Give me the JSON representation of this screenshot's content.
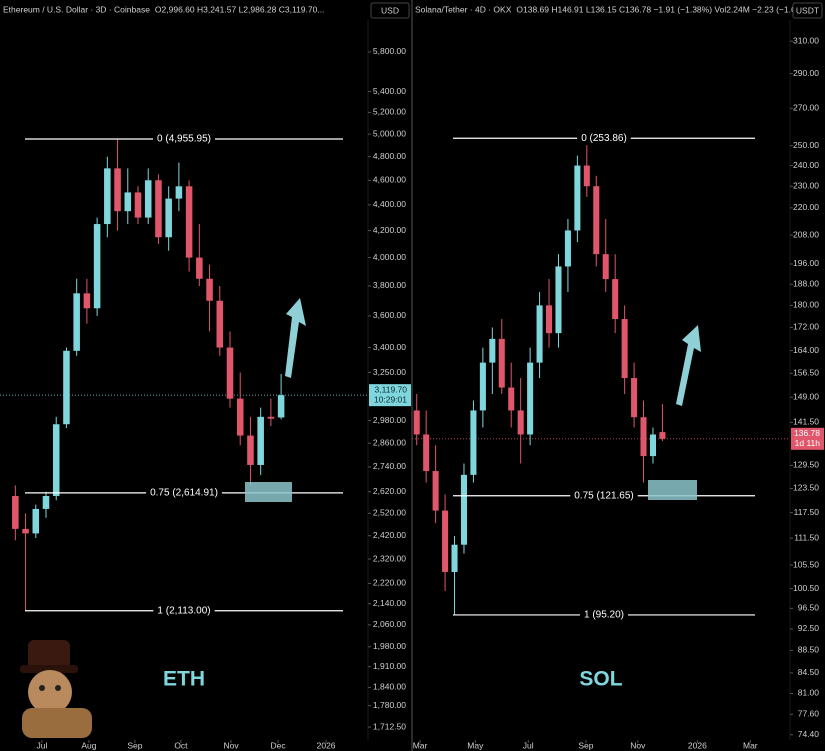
{
  "chart_data": [
    {
      "type": "candlestick",
      "symbol": "Ethereum / U.S. Dollar · 3D · Coinbase",
      "ohlc": "O2,996.60 H3,241.57 L2,986.28 C3,119.70...",
      "currency": "USD",
      "watermark": "ETH",
      "log_scale": true,
      "grid": false,
      "up_color": "#7fd6dc",
      "down_color": "#e0566a",
      "ylim": [
        1673,
        6145
      ],
      "yticks": [
        {
          "value": 5800,
          "label": "5,800.00"
        },
        {
          "value": 5400,
          "label": "5,400.00"
        },
        {
          "value": 5200,
          "label": "5,200.00"
        },
        {
          "value": 5000,
          "label": "5,000.00"
        },
        {
          "value": 4800,
          "label": "4,800.00"
        },
        {
          "value": 4600,
          "label": "4,600.00"
        },
        {
          "value": 4400,
          "label": "4,400.00"
        },
        {
          "value": 4200,
          "label": "4,200.00"
        },
        {
          "value": 4000,
          "label": "4,000.00"
        },
        {
          "value": 3800,
          "label": "3,800.00"
        },
        {
          "value": 3600,
          "label": "3,600.00"
        },
        {
          "value": 3400,
          "label": "3,400.00"
        },
        {
          "value": 3250,
          "label": "3,250.00"
        },
        {
          "value": 2980,
          "label": "2,980.00"
        },
        {
          "value": 2860,
          "label": "2,860.00"
        },
        {
          "value": 2740,
          "label": "2,740.00"
        },
        {
          "value": 2620,
          "label": "2,620.00"
        },
        {
          "value": 2520,
          "label": "2,520.00"
        },
        {
          "value": 2420,
          "label": "2,420.00"
        },
        {
          "value": 2320,
          "label": "2,320.00"
        },
        {
          "value": 2220,
          "label": "2,220.00"
        },
        {
          "value": 2140,
          "label": "2,140.00"
        },
        {
          "value": 2060,
          "label": "2,060.00"
        },
        {
          "value": 1980,
          "label": "1,980.00"
        },
        {
          "value": 1910,
          "label": "1,910.00"
        },
        {
          "value": 1840,
          "label": "1,840.00"
        },
        {
          "value": 1780,
          "label": "1,780.00"
        },
        {
          "value": 1712.5,
          "label": "1,712.50"
        }
      ],
      "xlim": [
        0,
        36
      ],
      "xticks": [
        {
          "value": 4.1,
          "label": "Jul"
        },
        {
          "value": 8.7,
          "label": "Aug"
        },
        {
          "value": 13.2,
          "label": "Sep"
        },
        {
          "value": 17.7,
          "label": "Oct"
        },
        {
          "value": 22.6,
          "label": "Nov"
        },
        {
          "value": 27.2,
          "label": "Dec"
        },
        {
          "value": 31.9,
          "label": "2026"
        }
      ],
      "candles": {
        "x": [
          1.5,
          2.5,
          3.5,
          4.5,
          5.5,
          6.5,
          7.5,
          8.5,
          9.5,
          10.5,
          11.5,
          12.5,
          13.5,
          14.5,
          15.5,
          16.5,
          17.5,
          18.5,
          19.5,
          20.5,
          21.5,
          22.5,
          23.5,
          24.5,
          25.5,
          26.5,
          27.5
        ],
        "open": [
          2600,
          2450,
          2430,
          2540,
          2600,
          2960,
          3380,
          3750,
          3650,
          4250,
          4700,
          4350,
          4500,
          4300,
          4600,
          4150,
          4450,
          4550,
          4000,
          3850,
          3700,
          3400,
          3100,
          2900,
          2750,
          3000,
          2996.6
        ],
        "high": [
          2650,
          2520,
          2560,
          2620,
          3000,
          3400,
          3850,
          3850,
          4300,
          4800,
          4955.95,
          4700,
          4550,
          4700,
          4650,
          4550,
          4750,
          4600,
          4250,
          3950,
          3800,
          3500,
          3250,
          3000,
          3050,
          3100,
          3241.57
        ],
        "low": [
          2400,
          2113,
          2410,
          2500,
          2580,
          2940,
          3350,
          3550,
          3600,
          4150,
          4200,
          4250,
          4250,
          4250,
          4100,
          4050,
          4350,
          3900,
          3800,
          3500,
          3350,
          3050,
          2850,
          2650,
          2700,
          2950,
          2986.28
        ],
        "close": [
          2450,
          2430,
          2540,
          2600,
          2960,
          3380,
          3750,
          3650,
          4250,
          4700,
          4350,
          4500,
          4300,
          4600,
          4150,
          4450,
          4550,
          4000,
          3850,
          3700,
          3400,
          3100,
          2900,
          2750,
          3000,
          2990,
          3119.7
        ]
      },
      "levels": [
        {
          "value": 4955.95,
          "label": "0 (4,955.95)"
        },
        {
          "value": 2614.91,
          "label": "0.75 (2,614.91)"
        },
        {
          "value": 2113,
          "label": "1 (2,113.00)"
        }
      ],
      "current": {
        "value": 3119.7,
        "label": "3,119.70",
        "timer": "10:29:01"
      }
    },
    {
      "type": "candlestick",
      "symbol": "Solana/Tether · 4D · OKX",
      "ohlc": "O138.69 H146.91 L136.15 C136.78 −1.91 (−1.38%) Vol2.24M −2.23 (−1.60%)",
      "currency": "USDT",
      "watermark": "SOL",
      "log_scale": true,
      "grid": false,
      "up_color": "#7fd6dc",
      "down_color": "#e0566a",
      "ylim": [
        73.6,
        323.8
      ],
      "yticks": [
        {
          "value": 310,
          "label": "310.00"
        },
        {
          "value": 290,
          "label": "290.00"
        },
        {
          "value": 270,
          "label": "270.00"
        },
        {
          "value": 250,
          "label": "250.00"
        },
        {
          "value": 240,
          "label": "240.00"
        },
        {
          "value": 230,
          "label": "230.00"
        },
        {
          "value": 220,
          "label": "220.00"
        },
        {
          "value": 208,
          "label": "208.00"
        },
        {
          "value": 196,
          "label": "196.00"
        },
        {
          "value": 188,
          "label": "188.00"
        },
        {
          "value": 180,
          "label": "180.00"
        },
        {
          "value": 172,
          "label": "172.00"
        },
        {
          "value": 164,
          "label": "164.00"
        },
        {
          "value": 156.5,
          "label": "156.50"
        },
        {
          "value": 149,
          "label": "149.00"
        },
        {
          "value": 141.5,
          "label": "141.50"
        },
        {
          "value": 129.5,
          "label": "129.50"
        },
        {
          "value": 123.5,
          "label": "123.50"
        },
        {
          "value": 117.5,
          "label": "117.50"
        },
        {
          "value": 111.5,
          "label": "111.50"
        },
        {
          "value": 105.5,
          "label": "105.50"
        },
        {
          "value": 100.5,
          "label": "100.50"
        },
        {
          "value": 96.5,
          "label": "96.50"
        },
        {
          "value": 92.5,
          "label": "92.50"
        },
        {
          "value": 88.5,
          "label": "88.50"
        },
        {
          "value": 84.5,
          "label": "84.50"
        },
        {
          "value": 81,
          "label": "81.00"
        },
        {
          "value": 77.6,
          "label": "77.60"
        },
        {
          "value": 74.4,
          "label": "74.40"
        }
      ],
      "xlim": [
        0,
        40
      ],
      "xticks": [
        {
          "value": 0.85,
          "label": "Mar"
        },
        {
          "value": 6.7,
          "label": "May"
        },
        {
          "value": 12.3,
          "label": "Jul"
        },
        {
          "value": 18.4,
          "label": "Sep"
        },
        {
          "value": 23.9,
          "label": "Nov"
        },
        {
          "value": 30.2,
          "label": "2026"
        },
        {
          "value": 35.8,
          "label": "Mar"
        }
      ],
      "candles": {
        "x": [
          0.5,
          1.5,
          2.5,
          3.5,
          4.5,
          5.5,
          6.5,
          7.5,
          8.5,
          9.5,
          10.5,
          11.5,
          12.5,
          13.5,
          14.5,
          15.5,
          16.5,
          17.5,
          18.5,
          19.5,
          20.5,
          21.5,
          22.5,
          23.5,
          24.5,
          25.5,
          26.5
        ],
        "open": [
          145,
          138,
          128,
          118,
          104,
          110,
          127,
          145,
          160,
          168,
          152,
          145,
          138,
          160,
          180,
          170,
          195,
          210,
          240,
          230,
          200,
          190,
          175,
          155,
          143,
          132,
          138.69
        ],
        "high": [
          150,
          145,
          135,
          122,
          112,
          130,
          148,
          165,
          172,
          175,
          160,
          155,
          165,
          185,
          190,
          200,
          215,
          245,
          253.86,
          235,
          215,
          200,
          180,
          160,
          148,
          140,
          146.91
        ],
        "low": [
          135,
          125,
          115,
          100,
          95.2,
          108,
          125,
          140,
          150,
          150,
          140,
          130,
          135,
          155,
          165,
          165,
          185,
          205,
          225,
          195,
          185,
          170,
          150,
          140,
          125,
          130,
          136.15
        ],
        "close": [
          138,
          128,
          118,
          104,
          110,
          127,
          145,
          160,
          168,
          152,
          145,
          138,
          160,
          180,
          170,
          195,
          210,
          240,
          230,
          200,
          190,
          175,
          155,
          143,
          132,
          138,
          136.78
        ]
      },
      "levels": [
        {
          "value": 253.86,
          "label": "0 (253.86)"
        },
        {
          "value": 121.65,
          "label": "0.75 (121.65)"
        },
        {
          "value": 95.2,
          "label": "1 (95.20)"
        }
      ],
      "current": {
        "value": 136.78,
        "label": "136.78",
        "timer": "1d 11h"
      }
    }
  ]
}
